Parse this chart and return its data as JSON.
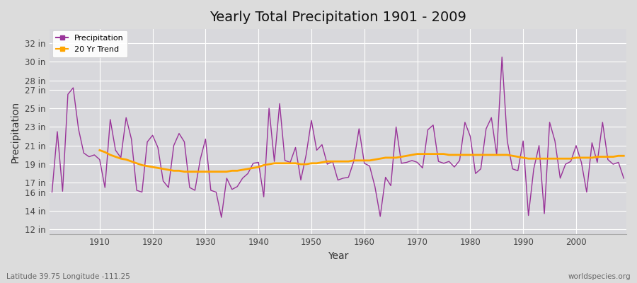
{
  "title": "Yearly Total Precipitation 1901 - 2009",
  "xlabel": "Year",
  "ylabel": "Precipitation",
  "subtitle_left": "Latitude 39.75 Longitude -111.25",
  "subtitle_right": "worldspecies.org",
  "years": [
    1901,
    1902,
    1903,
    1904,
    1905,
    1906,
    1907,
    1908,
    1909,
    1910,
    1911,
    1912,
    1913,
    1914,
    1915,
    1916,
    1917,
    1918,
    1919,
    1920,
    1921,
    1922,
    1923,
    1924,
    1925,
    1926,
    1927,
    1928,
    1929,
    1930,
    1931,
    1932,
    1933,
    1934,
    1935,
    1936,
    1937,
    1938,
    1939,
    1940,
    1941,
    1942,
    1943,
    1944,
    1945,
    1946,
    1947,
    1948,
    1949,
    1950,
    1951,
    1952,
    1953,
    1954,
    1955,
    1956,
    1957,
    1958,
    1959,
    1960,
    1961,
    1962,
    1963,
    1964,
    1965,
    1966,
    1967,
    1968,
    1969,
    1970,
    1971,
    1972,
    1973,
    1974,
    1975,
    1976,
    1977,
    1978,
    1979,
    1980,
    1981,
    1982,
    1983,
    1984,
    1985,
    1986,
    1987,
    1988,
    1989,
    1990,
    1991,
    1992,
    1993,
    1994,
    1995,
    1996,
    1997,
    1998,
    1999,
    2000,
    2001,
    2002,
    2003,
    2004,
    2005,
    2006,
    2007,
    2008,
    2009
  ],
  "precip": [
    16.0,
    22.5,
    16.1,
    26.5,
    27.2,
    22.8,
    20.2,
    19.8,
    20.0,
    19.5,
    16.5,
    23.8,
    20.5,
    19.7,
    24.0,
    21.7,
    16.2,
    16.0,
    21.4,
    22.1,
    20.8,
    17.2,
    16.5,
    21.0,
    22.3,
    21.4,
    16.5,
    16.2,
    19.5,
    21.7,
    16.2,
    16.0,
    13.3,
    17.5,
    16.3,
    16.6,
    17.5,
    18.0,
    19.1,
    19.2,
    15.5,
    25.0,
    19.3,
    25.5,
    19.4,
    19.2,
    20.8,
    17.3,
    20.0,
    23.7,
    20.5,
    21.1,
    19.0,
    19.3,
    17.3,
    17.5,
    17.6,
    19.3,
    22.8,
    19.1,
    18.8,
    16.6,
    13.4,
    17.6,
    16.7,
    23.0,
    19.1,
    19.2,
    19.4,
    19.2,
    18.6,
    22.7,
    23.2,
    19.3,
    19.1,
    19.3,
    18.7,
    19.4,
    23.5,
    22.0,
    18.0,
    18.5,
    22.8,
    24.0,
    20.0,
    30.5,
    21.5,
    18.5,
    18.3,
    21.5,
    13.5,
    18.5,
    21.0,
    13.7,
    23.5,
    21.5,
    17.5,
    19.0,
    19.3,
    21.0,
    19.2,
    16.0,
    21.3,
    19.2,
    23.5,
    19.5,
    19.0,
    19.2,
    17.5
  ],
  "trend": [
    null,
    null,
    null,
    null,
    null,
    null,
    null,
    null,
    null,
    20.5,
    20.3,
    20.0,
    19.8,
    19.6,
    19.5,
    19.3,
    19.1,
    18.9,
    18.8,
    18.7,
    18.6,
    18.5,
    18.4,
    18.3,
    18.3,
    18.2,
    18.2,
    18.2,
    18.2,
    18.2,
    18.2,
    18.2,
    18.2,
    18.2,
    18.3,
    18.3,
    18.4,
    18.5,
    18.6,
    18.7,
    18.9,
    19.0,
    19.1,
    19.1,
    19.1,
    19.1,
    19.1,
    19.0,
    19.0,
    19.1,
    19.1,
    19.2,
    19.3,
    19.3,
    19.3,
    19.3,
    19.3,
    19.4,
    19.4,
    19.4,
    19.4,
    19.5,
    19.6,
    19.7,
    19.7,
    19.7,
    19.8,
    19.9,
    20.0,
    20.1,
    20.1,
    20.1,
    20.1,
    20.1,
    20.1,
    20.0,
    20.0,
    20.0,
    20.0,
    20.0,
    20.0,
    20.0,
    20.0,
    20.0,
    20.0,
    20.0,
    20.0,
    19.9,
    19.8,
    19.7,
    19.6,
    19.6,
    19.6,
    19.6,
    19.6,
    19.6,
    19.6,
    19.6,
    19.6,
    19.7,
    19.7,
    19.7,
    19.7,
    19.8,
    19.8,
    19.8,
    19.8,
    19.9,
    19.9
  ],
  "precip_color": "#993399",
  "trend_color": "#FFA500",
  "bg_color": "#DCDCDC",
  "plot_bg_color": "#D8D8DC",
  "yticks": [
    12,
    14,
    16,
    17,
    19,
    21,
    23,
    25,
    27,
    28,
    30,
    32
  ],
  "ylim": [
    11.5,
    33.5
  ],
  "xlim": [
    1900.5,
    2009.5
  ],
  "xticks": [
    1910,
    1920,
    1930,
    1940,
    1950,
    1960,
    1970,
    1980,
    1990,
    2000
  ],
  "title_fontsize": 14,
  "tick_fontsize": 8.5,
  "label_fontsize": 10
}
